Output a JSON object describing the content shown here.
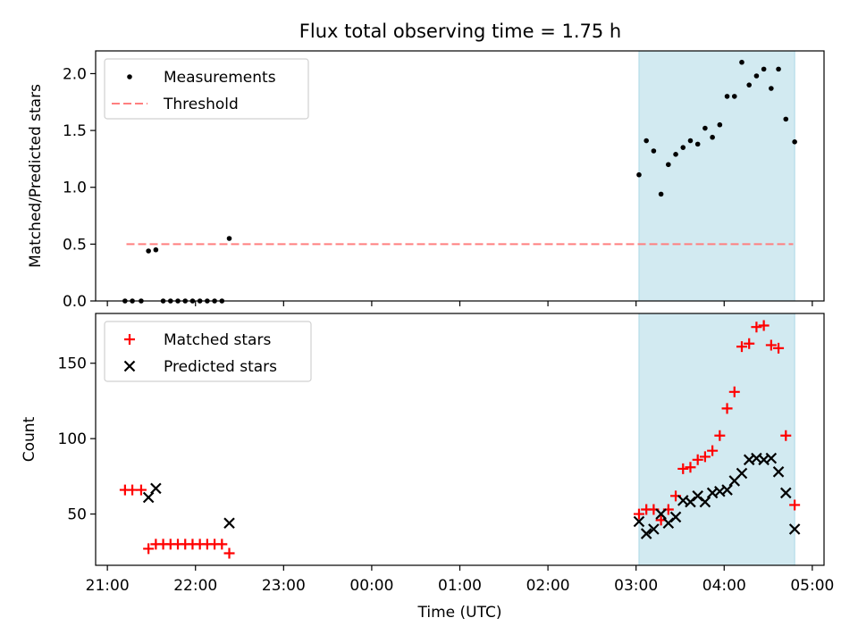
{
  "figure_title": "Flux total observing time = 1.75 h",
  "colors": {
    "span_fill": "#add8e6",
    "threshold_line": "#ff7f7f",
    "measurements": "#000000",
    "matched": "#ff0000",
    "predicted": "#000000"
  },
  "chart_data": [
    {
      "type": "scatter",
      "title": "Flux total observing time = 1.75 h",
      "xlabel": "",
      "ylabel": "Matched/Predicted stars",
      "xlim": [
        "20:52",
        "05:08"
      ],
      "ylim": [
        0,
        2.2
      ],
      "yticks": [
        0.0,
        0.5,
        1.0,
        1.5,
        2.0
      ],
      "ytick_labels": [
        "0.0",
        "0.5",
        "1.0",
        "1.5",
        "2.0"
      ],
      "xticks": [
        "21:00",
        "22:00",
        "23:00",
        "00:00",
        "01:00",
        "02:00",
        "03:00",
        "04:00",
        "05:00"
      ],
      "show_xtick_labels": false,
      "grid": false,
      "legend": "upper-left",
      "highlight_span": [
        "03:02",
        "04:48"
      ],
      "series": [
        {
          "name": "Measurements",
          "kind": "scatter",
          "marker": "dot",
          "x": [
            "21:12",
            "21:17",
            "21:23",
            "21:28",
            "21:33",
            "21:38",
            "21:43",
            "21:48",
            "21:53",
            "21:58",
            "22:03",
            "22:08",
            "22:13",
            "22:18",
            "22:23",
            "03:02",
            "03:07",
            "03:12",
            "03:17",
            "03:22",
            "03:27",
            "03:32",
            "03:37",
            "03:42",
            "03:47",
            "03:52",
            "03:57",
            "04:02",
            "04:07",
            "04:12",
            "04:17",
            "04:22",
            "04:27",
            "04:32",
            "04:37",
            "04:42",
            "04:48"
          ],
          "y": [
            0.0,
            0.0,
            0.0,
            0.44,
            0.45,
            0.0,
            0.0,
            0.0,
            0.0,
            0.0,
            0.0,
            0.0,
            0.0,
            0.0,
            0.55,
            1.11,
            1.41,
            1.32,
            0.94,
            1.2,
            1.29,
            1.35,
            1.41,
            1.38,
            1.52,
            1.44,
            1.55,
            1.8,
            1.8,
            2.1,
            1.9,
            1.98,
            2.04,
            1.87,
            2.04,
            1.6,
            1.4
          ]
        },
        {
          "name": "Threshold",
          "kind": "line",
          "style": "dashed",
          "x": [
            "21:13",
            "04:47"
          ],
          "y": [
            0.5,
            0.5
          ]
        }
      ]
    },
    {
      "type": "scatter",
      "title": "",
      "xlabel": "Time (UTC)",
      "ylabel": "Count",
      "xlim": [
        "20:52",
        "05:08"
      ],
      "ylim": [
        16,
        183
      ],
      "yticks": [
        50,
        100,
        150
      ],
      "ytick_labels": [
        "50",
        "100",
        "150"
      ],
      "xticks": [
        "21:00",
        "22:00",
        "23:00",
        "00:00",
        "01:00",
        "02:00",
        "03:00",
        "04:00",
        "05:00"
      ],
      "xtick_labels": [
        "21:00",
        "22:00",
        "23:00",
        "00:00",
        "01:00",
        "02:00",
        "03:00",
        "04:00",
        "05:00"
      ],
      "show_xtick_labels": true,
      "grid": false,
      "legend": "upper-left",
      "highlight_span": [
        "03:02",
        "04:48"
      ],
      "series": [
        {
          "name": "Matched stars",
          "kind": "scatter",
          "marker": "plus",
          "x": [
            "21:12",
            "21:17",
            "21:23",
            "21:28",
            "21:33",
            "21:38",
            "21:43",
            "21:48",
            "21:53",
            "21:58",
            "22:03",
            "22:08",
            "22:13",
            "22:18",
            "22:23",
            "03:02",
            "03:07",
            "03:12",
            "03:17",
            "03:22",
            "03:27",
            "03:32",
            "03:37",
            "03:42",
            "03:47",
            "03:52",
            "03:57",
            "04:02",
            "04:07",
            "04:12",
            "04:17",
            "04:22",
            "04:27",
            "04:32",
            "04:37",
            "04:42",
            "04:48"
          ],
          "y": [
            66,
            66,
            66,
            27,
            30,
            30,
            30,
            30,
            30,
            30,
            30,
            30,
            30,
            30,
            24,
            50,
            53,
            53,
            46,
            53,
            62,
            80,
            81,
            86,
            88,
            92,
            102,
            120,
            131,
            161,
            163,
            174,
            175,
            162,
            160,
            102,
            56
          ]
        },
        {
          "name": "Predicted stars",
          "kind": "scatter",
          "marker": "x",
          "x": [
            "21:28",
            "21:33",
            "22:23",
            "03:02",
            "03:07",
            "03:12",
            "03:17",
            "03:22",
            "03:27",
            "03:32",
            "03:37",
            "03:42",
            "03:47",
            "03:52",
            "03:57",
            "04:02",
            "04:07",
            "04:12",
            "04:17",
            "04:22",
            "04:27",
            "04:32",
            "04:37",
            "04:42",
            "04:48"
          ],
          "y": [
            61,
            67,
            44,
            45,
            37,
            40,
            50,
            44,
            48,
            59,
            58,
            62,
            58,
            64,
            65,
            66,
            72,
            77,
            86,
            87,
            86,
            87,
            78,
            64,
            40
          ]
        }
      ]
    }
  ]
}
